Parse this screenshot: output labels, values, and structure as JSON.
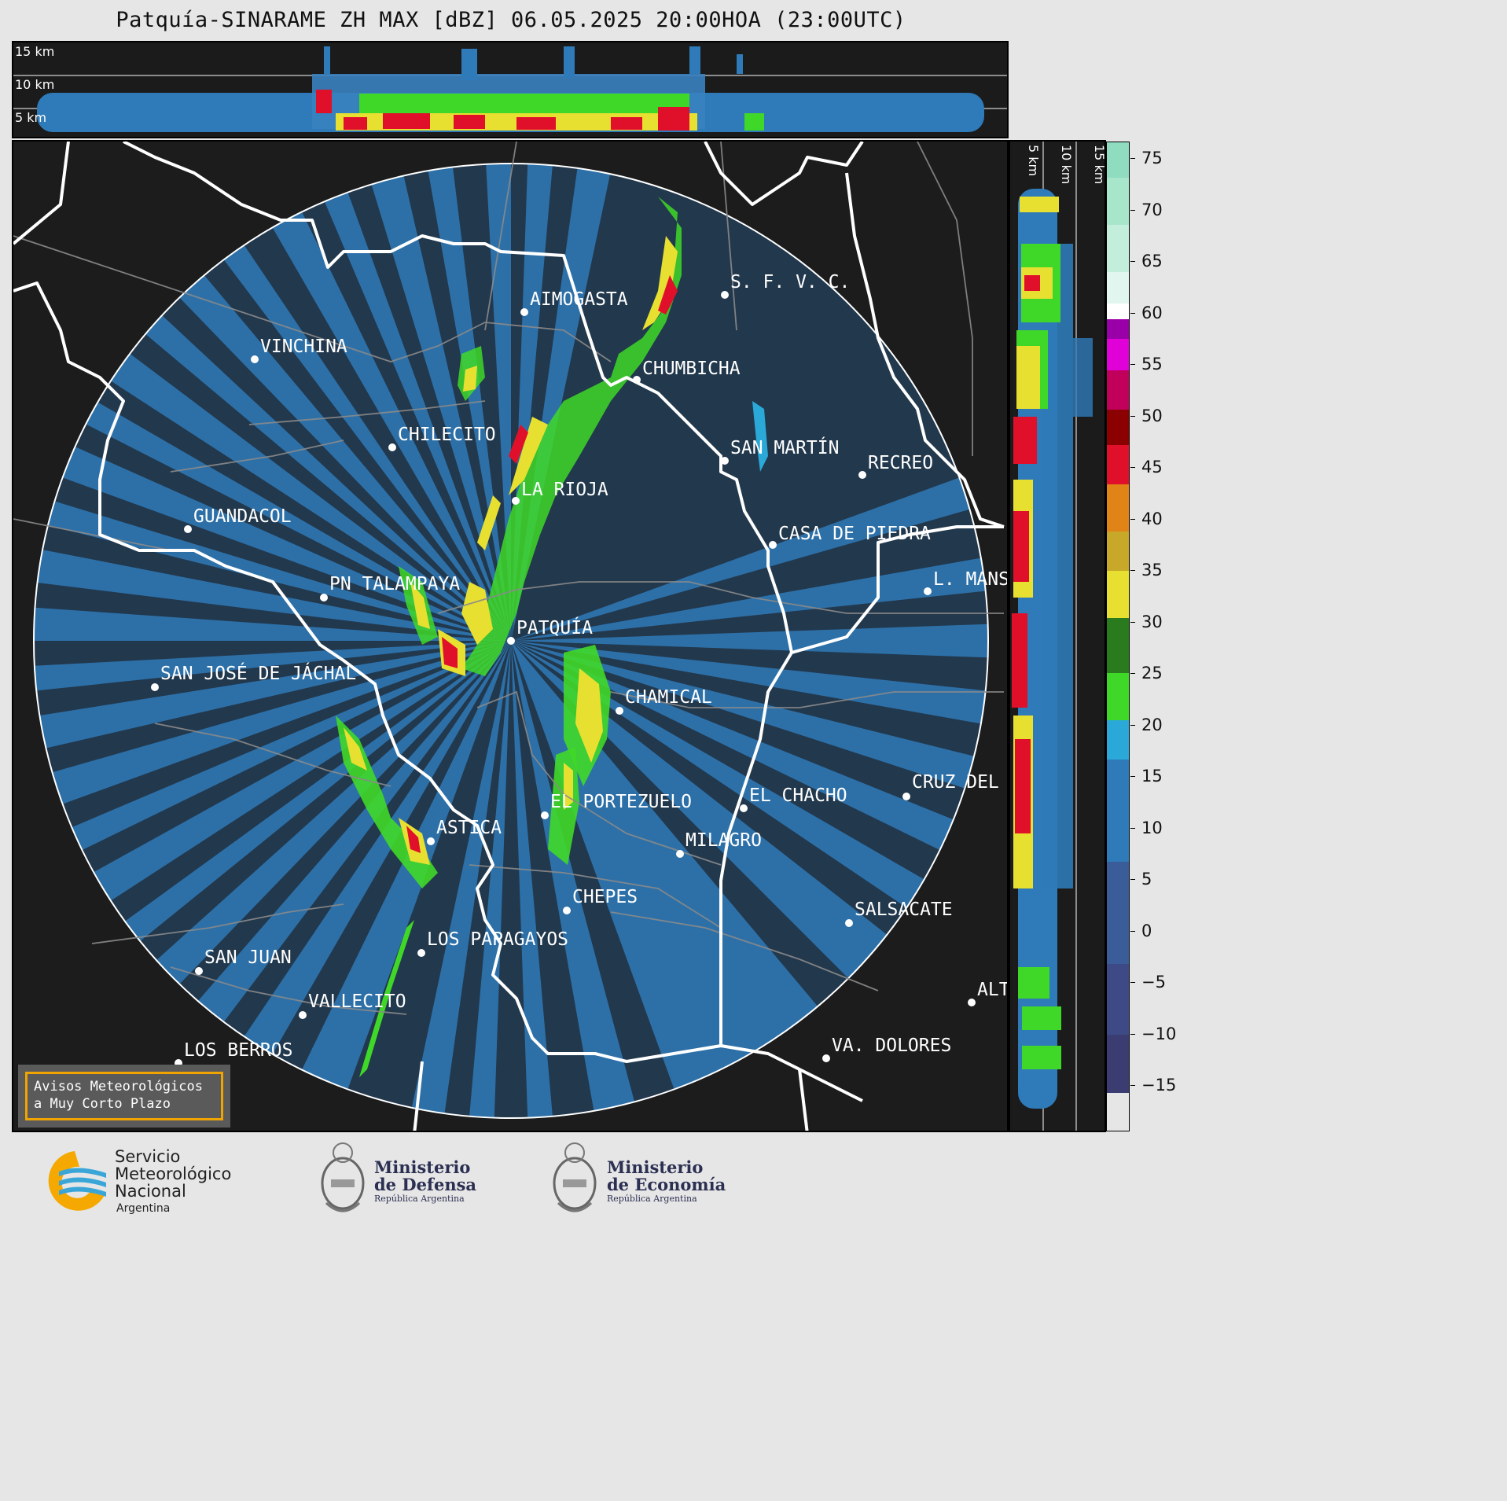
{
  "title": "Patquía-SINARAME ZH MAX [dBZ] 06.05.2025 20:00HOA (23:00UTC)",
  "height_panel": {
    "labels": [
      "15 km",
      "10 km",
      "5 km"
    ]
  },
  "side_panel": {
    "labels": [
      "5 km",
      "10 km",
      "15 km"
    ]
  },
  "colorbar": {
    "unit": "dBZ",
    "ticks": [
      "75",
      "70",
      "65",
      "60",
      "55",
      "50",
      "45",
      "40",
      "35",
      "30",
      "25",
      "20",
      "15",
      "10",
      "5",
      "0",
      "−5",
      "−10",
      "−15"
    ],
    "colors": {
      "very_high": "#8fdcc0",
      "white": "#ffffff",
      "purple": "#9a00a8",
      "magenta": "#e000d8",
      "dark_red": "#8b0000",
      "red": "#e0102a",
      "orange": "#e08418",
      "yellow": "#e8e030",
      "dark_green": "#2a7a1e",
      "green": "#40d828",
      "cyan": "#2aa8d8",
      "blue": "#2f7ab8",
      "slate": "#3a5c98",
      "navy": "#3a3c72"
    }
  },
  "cities": [
    {
      "name": "AIMOGASTA"
    },
    {
      "name": "S. F. V. C."
    },
    {
      "name": "VINCHINA"
    },
    {
      "name": "CHUMBICHA"
    },
    {
      "name": "CHILECITO"
    },
    {
      "name": "SAN MARTÍN"
    },
    {
      "name": "RECREO"
    },
    {
      "name": "LA RIOJA"
    },
    {
      "name": "GUANDACOL"
    },
    {
      "name": "CASA DE PIEDRA"
    },
    {
      "name": "L. MANS"
    },
    {
      "name": "PN TALAMPAYA"
    },
    {
      "name": "PATQUÍA"
    },
    {
      "name": "SAN JOSÉ DE JÁCHAL"
    },
    {
      "name": "CHAMICAL"
    },
    {
      "name": "CRUZ DEL"
    },
    {
      "name": "EL CHACHO"
    },
    {
      "name": "EL PORTEZUELO"
    },
    {
      "name": "ASTICA"
    },
    {
      "name": "MILAGRO"
    },
    {
      "name": "CHEPES"
    },
    {
      "name": "SALSACATE"
    },
    {
      "name": "LOS PAPAGAYOS"
    },
    {
      "name": "SAN JUAN"
    },
    {
      "name": "ALT"
    },
    {
      "name": "VALLECITO"
    },
    {
      "name": "VA. DOLORES"
    },
    {
      "name": "LOS BERROS"
    }
  ],
  "avisos": {
    "line1": "Avisos Meteorológicos",
    "line2": "a Muy Corto Plazo"
  },
  "logos": {
    "smn_line1": "Servicio",
    "smn_line2": "Meteorológico",
    "smn_line3": "Nacional",
    "smn_country": "Argentina",
    "defensa_line1": "Ministerio",
    "defensa_line2": "de Defensa",
    "defensa_country": "República Argentina",
    "economia_line1": "Ministerio",
    "economia_line2": "de Economía",
    "economia_country": "República Argentina"
  }
}
